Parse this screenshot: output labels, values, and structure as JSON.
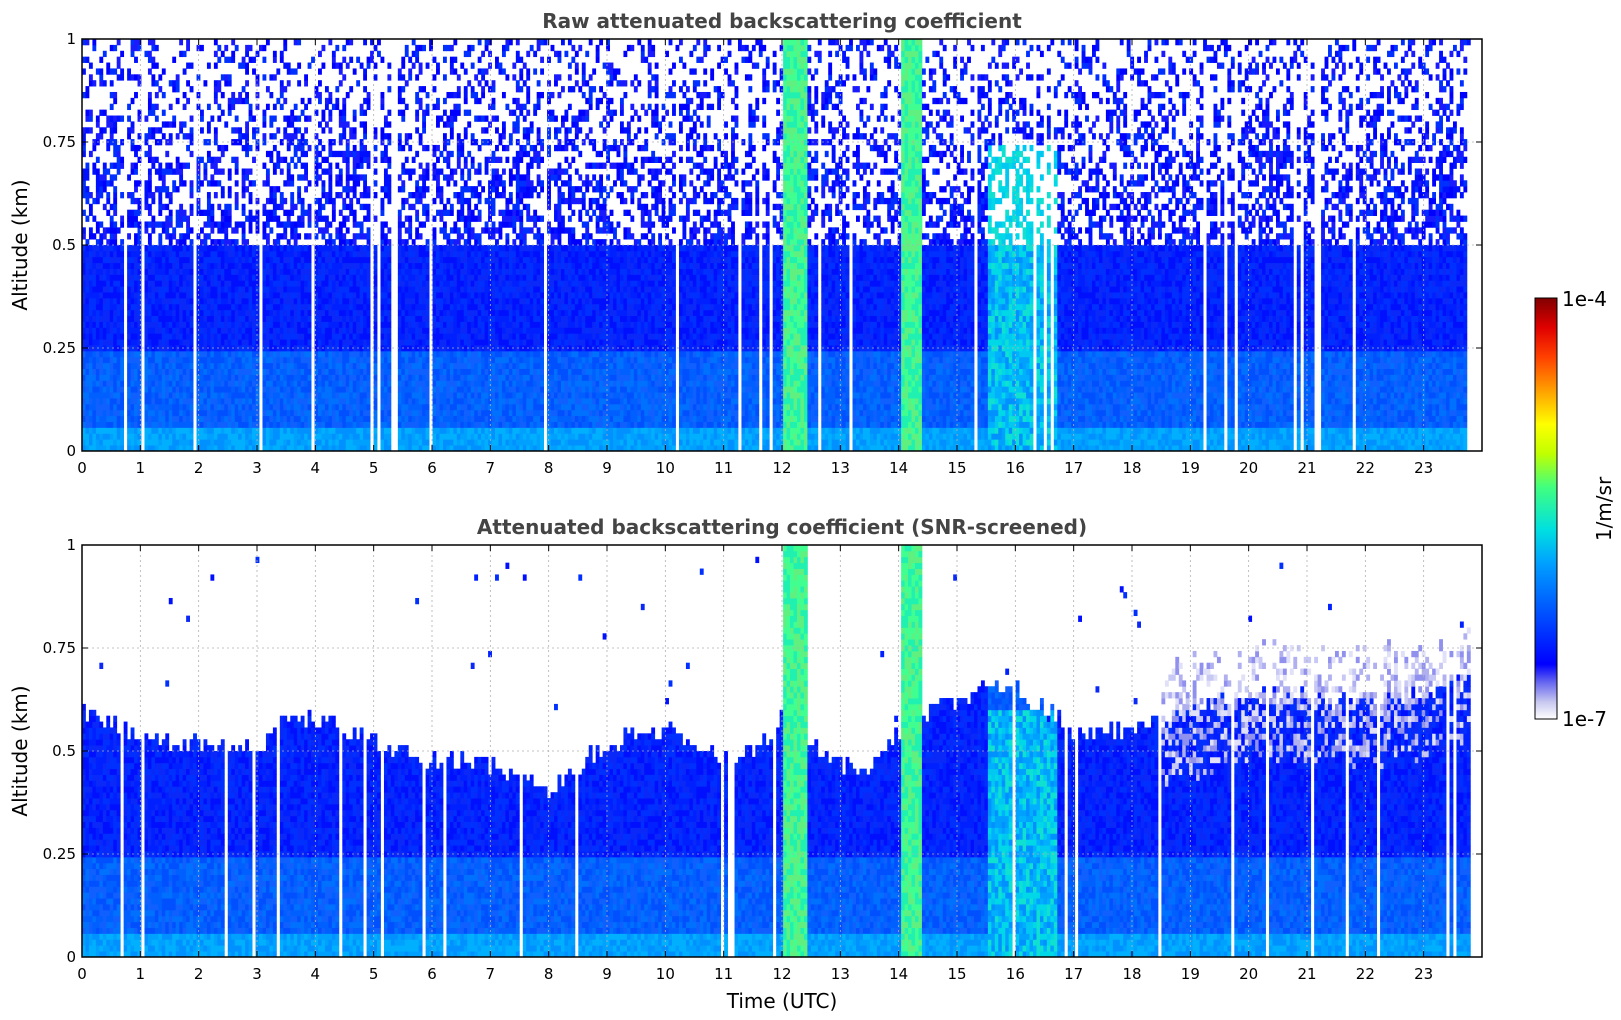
{
  "figure": {
    "colorbar": {
      "min_label": "1e-7",
      "max_label": "1e-4",
      "label": "1/m/sr",
      "scale": "log",
      "colormap": [
        "#ffffff",
        "#c8c8f0",
        "#7a7af0",
        "#0000ff",
        "#0050ff",
        "#00a0ff",
        "#00e0e0",
        "#40ff80",
        "#c0ff00",
        "#ffff00",
        "#ffa000",
        "#ff4000",
        "#e00000",
        "#800000"
      ]
    }
  },
  "chart_data": [
    {
      "type": "heatmap",
      "title": "Raw attenuated backscattering coefficient",
      "xlabel": "",
      "ylabel": "Altitude (km)",
      "xlim": [
        0,
        24
      ],
      "ylim": [
        0,
        1
      ],
      "x_ticks": [
        "0",
        "1",
        "2",
        "3",
        "4",
        "5",
        "6",
        "7",
        "8",
        "9",
        "10",
        "11",
        "12",
        "13",
        "14",
        "15",
        "16",
        "17",
        "18",
        "19",
        "20",
        "21",
        "22",
        "23"
      ],
      "y_ticks": [
        "0",
        "0.25",
        "0.5",
        "0.75",
        "1"
      ],
      "grid": true,
      "screened": false,
      "data_end_hour": 23.8,
      "noise_top_km": 0.5,
      "enhanced_columns": [
        {
          "x_start": 12.0,
          "x_end": 12.45,
          "level": "green"
        },
        {
          "x_start": 14.05,
          "x_end": 14.4,
          "level": "green"
        },
        {
          "x_start": 15.5,
          "x_end": 16.7,
          "level": "cyan"
        }
      ]
    },
    {
      "type": "heatmap",
      "title": "Attenuated backscattering coefficient (SNR-screened)",
      "xlabel": "Time (UTC)",
      "ylabel": "Altitude (km)",
      "xlim": [
        0,
        24
      ],
      "ylim": [
        0,
        1
      ],
      "x_ticks": [
        "0",
        "1",
        "2",
        "3",
        "4",
        "5",
        "6",
        "7",
        "8",
        "9",
        "10",
        "11",
        "12",
        "13",
        "14",
        "15",
        "16",
        "17",
        "18",
        "19",
        "20",
        "21",
        "22",
        "23"
      ],
      "y_ticks": [
        "0",
        "0.25",
        "0.5",
        "0.75",
        "1"
      ],
      "grid": true,
      "screened": true,
      "data_end_hour": 23.8,
      "boundary_layer_top_km": [
        [
          0.0,
          0.6
        ],
        [
          0.5,
          0.57
        ],
        [
          1.0,
          0.54
        ],
        [
          1.5,
          0.52
        ],
        [
          2.0,
          0.52
        ],
        [
          2.5,
          0.52
        ],
        [
          3.0,
          0.51
        ],
        [
          3.5,
          0.57
        ],
        [
          4.0,
          0.58
        ],
        [
          4.5,
          0.55
        ],
        [
          5.0,
          0.52
        ],
        [
          5.5,
          0.5
        ],
        [
          6.0,
          0.48
        ],
        [
          6.5,
          0.48
        ],
        [
          7.0,
          0.47
        ],
        [
          7.5,
          0.43
        ],
        [
          8.0,
          0.41
        ],
        [
          8.5,
          0.46
        ],
        [
          9.0,
          0.52
        ],
        [
          9.5,
          0.55
        ],
        [
          10.0,
          0.55
        ],
        [
          10.5,
          0.52
        ],
        [
          11.0,
          0.48
        ],
        [
          11.5,
          0.5
        ],
        [
          12.0,
          0.58
        ],
        [
          12.5,
          0.52
        ],
        [
          13.0,
          0.47
        ],
        [
          13.5,
          0.45
        ],
        [
          14.0,
          0.55
        ],
        [
          14.5,
          0.6
        ],
        [
          15.0,
          0.62
        ],
        [
          15.5,
          0.66
        ],
        [
          16.0,
          0.65
        ],
        [
          16.5,
          0.6
        ],
        [
          17.0,
          0.55
        ],
        [
          17.5,
          0.56
        ],
        [
          18.0,
          0.55
        ],
        [
          18.5,
          0.58
        ],
        [
          19.0,
          0.6
        ],
        [
          19.5,
          0.62
        ],
        [
          20.0,
          0.63
        ],
        [
          20.5,
          0.64
        ],
        [
          21.0,
          0.63
        ],
        [
          21.5,
          0.62
        ],
        [
          22.0,
          0.62
        ],
        [
          22.5,
          0.63
        ],
        [
          23.0,
          0.64
        ],
        [
          23.5,
          0.66
        ],
        [
          23.8,
          0.68
        ]
      ],
      "enhanced_columns": [
        {
          "x_start": 12.0,
          "x_end": 12.45,
          "level": "green"
        },
        {
          "x_start": 14.05,
          "x_end": 14.4,
          "level": "green"
        },
        {
          "x_start": 15.5,
          "x_end": 16.7,
          "level": "cyan"
        }
      ]
    }
  ]
}
